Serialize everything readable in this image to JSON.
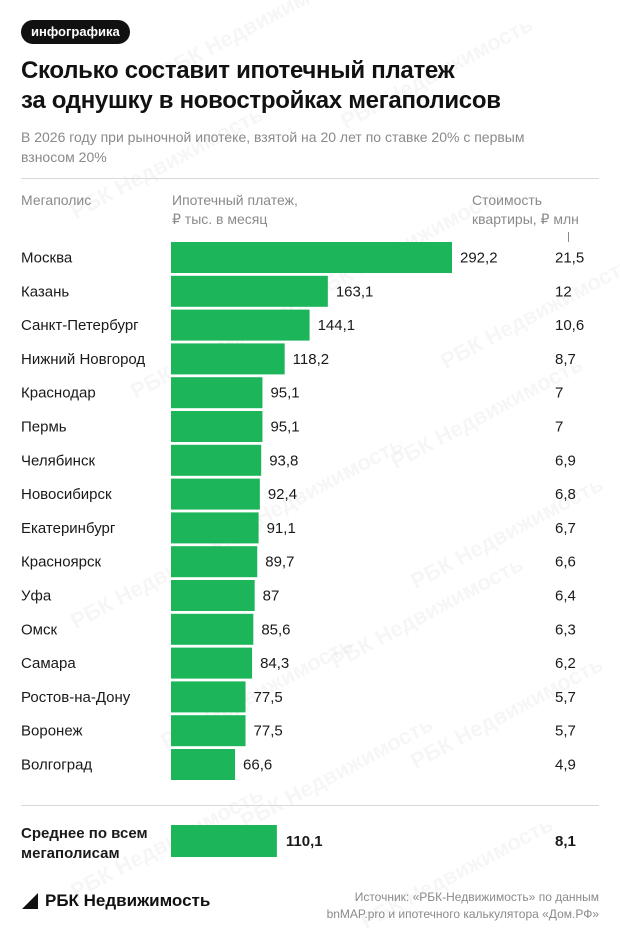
{
  "badge": "инфографика",
  "title_line1": "Сколько составит ипотечный платеж",
  "title_line2": "за однушку в новостройках мегаполисов",
  "subtitle_line1": "В 2026 году при рыночной ипотеке, взятой на 20 лет по ставке 20% с первым",
  "subtitle_line2": "взносом 20%",
  "columns": {
    "city_line1": "Мегаполис",
    "payment_line1": "Ипотечный платеж,",
    "payment_line2": "₽ тыс. в месяц",
    "price_line1": "Стоимость",
    "price_line2": "квартиры, ₽ млн"
  },
  "colors": {
    "bar": "#1db559",
    "text": "#1a1a1a",
    "muted": "#8a8a8a"
  },
  "watermark": "РБК Недвижимость",
  "chart_data": {
    "type": "bar",
    "orientation": "horizontal",
    "categories": [
      "Москва",
      "Казань",
      "Санкт-Петербург",
      "Нижний Новгород",
      "Краснодар",
      "Пермь",
      "Челябинск",
      "Новосибирск",
      "Екатеринбург",
      "Красноярск",
      "Уфа",
      "Омск",
      "Самара",
      "Ростов-на-Дону",
      "Воронеж",
      "Волгоград"
    ],
    "values": [
      292.2,
      163.1,
      144.1,
      118.2,
      95.1,
      95.1,
      93.8,
      92.4,
      91.1,
      89.7,
      87,
      85.6,
      84.3,
      77.5,
      77.5,
      66.6
    ],
    "value_labels": [
      "292,2",
      "163,1",
      "144,1",
      "118,2",
      "95,1",
      "95,1",
      "93,8",
      "92,4",
      "91,1",
      "89,7",
      "87",
      "85,6",
      "84,3",
      "77,5",
      "77,5",
      "66,6"
    ],
    "price_labels": [
      "21,5",
      "12",
      "10,6",
      "8,7",
      "7",
      "7",
      "6,9",
      "6,8",
      "6,7",
      "6,6",
      "6,4",
      "6,3",
      "6,2",
      "5,7",
      "5,7",
      "4,9"
    ],
    "average": {
      "label_line1": "Среднее по всем",
      "label_line2": "мегаполисам",
      "value": 110.1,
      "value_label": "110,1",
      "price_label": "8,1"
    },
    "xlim": [
      0,
      292.2
    ]
  },
  "footer": {
    "logo": "РБК Недвижимость",
    "source_line1": "Источник: «РБК-Недвижимость» по данным",
    "source_line2": "bnMAP.pro и ипотечного калькулятора «Дом.РФ»"
  }
}
